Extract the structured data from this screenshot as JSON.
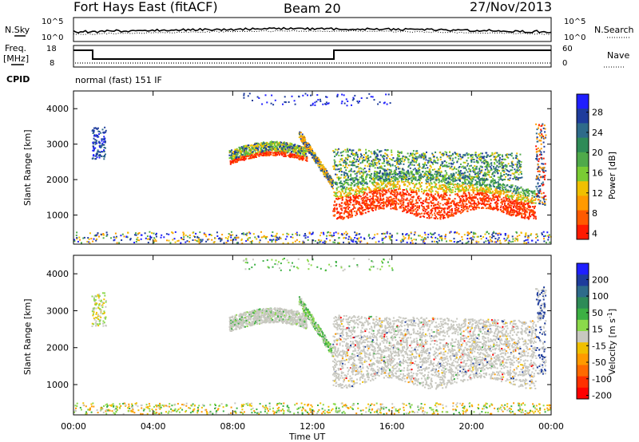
{
  "header": {
    "station": "Fort Hays East (fitACF)",
    "beam": "Beam 20",
    "date": "27/Nov/2013"
  },
  "top_panels": {
    "nsky_label": "N.Sky",
    "nsearch_label": "N.Search",
    "noise_ticks": [
      "10^5",
      "10^0"
    ],
    "freq_label_1": "Freq.",
    "freq_label_2": "[MHz]",
    "freq_ticks": [
      "18",
      "8"
    ],
    "nave_label": "Nave",
    "nave_ticks": [
      "60",
      "0"
    ],
    "cpid_label": "CPID",
    "cpid_text": "normal (fast) 151 IF"
  },
  "colors": {
    "power_scale": [
      "#1f1fff",
      "#1e3c9c",
      "#2e6b8a",
      "#2e8b57",
      "#4faa4a",
      "#7acc33",
      "#f0c000",
      "#ff9a00",
      "#ff5a00",
      "#ff1a00"
    ],
    "velocity_scale": [
      "#1f1fff",
      "#1e3c9c",
      "#2e6b8a",
      "#2e8b57",
      "#3cb043",
      "#8bd94a",
      "#c8c8c0",
      "#f0c000",
      "#ff9a00",
      "#ff6a00",
      "#ff3000",
      "#ff0000"
    ]
  },
  "chart_data": [
    {
      "type": "heatmap",
      "name": "Power",
      "xlabel": "",
      "ylabel": "Slant Range [km]",
      "colorbar_label": "Power [dB]",
      "colorbar_ticks": [
        "28",
        "24",
        "20",
        "16",
        "12",
        "8",
        "4"
      ],
      "x_ticks": [
        "00:00",
        "04:00",
        "08:00",
        "12:00",
        "16:00",
        "20:00",
        "00:00"
      ],
      "y_ticks": [
        "4000",
        "3000",
        "2000",
        "1000"
      ],
      "xlim": [
        0,
        24
      ],
      "ylim": [
        180,
        4500
      ]
    },
    {
      "type": "heatmap",
      "name": "Velocity",
      "xlabel": "Time UT",
      "ylabel": "Slant Range [km]",
      "colorbar_label": "Velocity [m s^-1]",
      "colorbar_ticks": [
        "200",
        "100",
        "50",
        "15",
        "-15",
        "-50",
        "-100",
        "-200"
      ],
      "x_ticks": [
        "00:00",
        "04:00",
        "08:00",
        "12:00",
        "16:00",
        "20:00",
        "00:00"
      ],
      "y_ticks": [
        "4000",
        "3000",
        "2000",
        "1000"
      ],
      "xlim": [
        0,
        24
      ],
      "ylim": [
        180,
        4500
      ]
    }
  ]
}
